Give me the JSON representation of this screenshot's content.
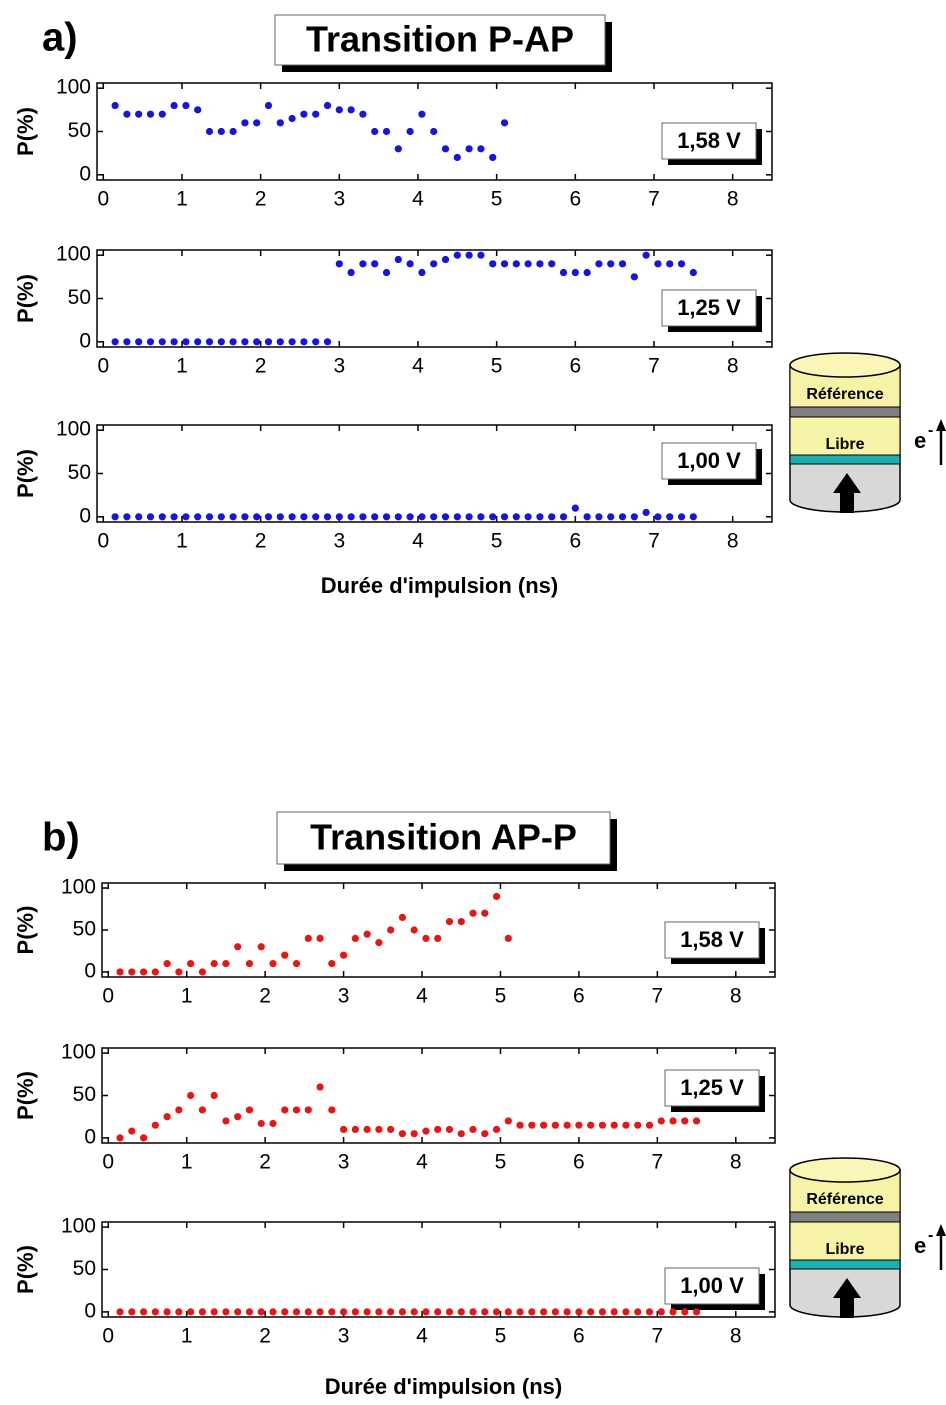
{
  "chart_data": [
    {
      "type": "scatter",
      "panel_label": "a)",
      "title": "Transition P-AP",
      "annotation": "1,58 V",
      "ylabel": "P(%)",
      "color": "#1515e0",
      "x": [
        0.15,
        0.3,
        0.45,
        0.6,
        0.75,
        0.9,
        1.05,
        1.2,
        1.35,
        1.5,
        1.65,
        1.8,
        1.95,
        2.1,
        2.25,
        2.4,
        2.55,
        2.7,
        2.85,
        3,
        3.15,
        3.3,
        3.45,
        3.6,
        3.75,
        3.9,
        4.05,
        4.2,
        4.35,
        4.5,
        4.65,
        4.8,
        4.95,
        5.1
      ],
      "values": [
        80,
        70,
        70,
        70,
        70,
        80,
        80,
        75,
        50,
        50,
        50,
        60,
        60,
        80,
        60,
        65,
        70,
        70,
        80,
        75,
        75,
        70,
        50,
        50,
        30,
        50,
        70,
        50,
        30,
        20,
        30,
        30,
        20,
        60
      ],
      "xlim": [
        -0.08,
        8.5
      ],
      "ylim": [
        -6,
        106
      ],
      "xticks": [
        0,
        1,
        2,
        3,
        4,
        5,
        6,
        7,
        8
      ],
      "yticks": [
        0,
        50,
        100
      ]
    },
    {
      "type": "scatter",
      "annotation": "1,25 V",
      "ylabel": "P(%)",
      "color": "#1515e0",
      "x": [
        0.15,
        0.3,
        0.45,
        0.6,
        0.75,
        0.9,
        1.05,
        1.2,
        1.35,
        1.5,
        1.65,
        1.8,
        1.95,
        2.1,
        2.25,
        2.4,
        2.55,
        2.7,
        2.85,
        3,
        3.15,
        3.3,
        3.45,
        3.6,
        3.75,
        3.9,
        4.05,
        4.2,
        4.35,
        4.5,
        4.65,
        4.8,
        4.95,
        5.1,
        5.25,
        5.4,
        5.55,
        5.7,
        5.85,
        6,
        6.15,
        6.3,
        6.45,
        6.6,
        6.75,
        6.9,
        7.05,
        7.2,
        7.35,
        7.5
      ],
      "values": [
        0,
        0,
        0,
        0,
        0,
        0,
        0,
        0,
        0,
        0,
        0,
        0,
        0,
        0,
        0,
        0,
        0,
        0,
        0,
        90,
        80,
        90,
        90,
        80,
        95,
        90,
        80,
        90,
        95,
        100,
        100,
        100,
        90,
        90,
        90,
        90,
        90,
        90,
        80,
        80,
        80,
        90,
        90,
        90,
        75,
        100,
        90,
        90,
        90,
        80
      ],
      "xlim": [
        -0.08,
        8.5
      ],
      "ylim": [
        -6,
        106
      ],
      "xticks": [
        0,
        1,
        2,
        3,
        4,
        5,
        6,
        7,
        8
      ],
      "yticks": [
        0,
        50,
        100
      ]
    },
    {
      "type": "scatter",
      "annotation": "1,00 V",
      "ylabel": "P(%)",
      "xlabel": "Durée d'impulsion (ns)",
      "color": "#1515e0",
      "x": [
        0.15,
        0.3,
        0.45,
        0.6,
        0.75,
        0.9,
        1.05,
        1.2,
        1.35,
        1.5,
        1.65,
        1.8,
        1.95,
        2.1,
        2.25,
        2.4,
        2.55,
        2.7,
        2.85,
        3,
        3.15,
        3.3,
        3.45,
        3.6,
        3.75,
        3.9,
        4.05,
        4.2,
        4.35,
        4.5,
        4.65,
        4.8,
        4.95,
        5.1,
        5.25,
        5.4,
        5.55,
        5.7,
        5.85,
        6,
        6.15,
        6.3,
        6.45,
        6.6,
        6.75,
        6.9,
        7.05,
        7.2,
        7.35,
        7.5
      ],
      "values": [
        0,
        0,
        0,
        0,
        0,
        0,
        0,
        0,
        0,
        0,
        0,
        0,
        0,
        0,
        0,
        0,
        0,
        0,
        0,
        0,
        0,
        0,
        0,
        0,
        0,
        0,
        0,
        0,
        0,
        0,
        0,
        0,
        0,
        0,
        0,
        0,
        0,
        0,
        0,
        10,
        0,
        0,
        0,
        0,
        0,
        5,
        0,
        0,
        0,
        0
      ],
      "xlim": [
        -0.08,
        8.5
      ],
      "ylim": [
        -6,
        106
      ],
      "xticks": [
        0,
        1,
        2,
        3,
        4,
        5,
        6,
        7,
        8
      ],
      "yticks": [
        0,
        50,
        100
      ]
    },
    {
      "type": "scatter",
      "panel_label": "b)",
      "title": "Transition AP-P",
      "annotation": "1,58 V",
      "ylabel": "P(%)",
      "color": "#e81515",
      "x": [
        0.15,
        0.3,
        0.45,
        0.6,
        0.75,
        0.9,
        1.05,
        1.2,
        1.35,
        1.5,
        1.65,
        1.8,
        1.95,
        2.1,
        2.25,
        2.4,
        2.55,
        2.7,
        2.85,
        3,
        3.15,
        3.3,
        3.45,
        3.6,
        3.75,
        3.9,
        4.05,
        4.2,
        4.35,
        4.5,
        4.65,
        4.8,
        4.95,
        5.1
      ],
      "values": [
        0,
        0,
        0,
        0,
        10,
        0,
        10,
        0,
        10,
        10,
        30,
        10,
        30,
        10,
        20,
        10,
        40,
        40,
        10,
        20,
        40,
        45,
        35,
        50,
        65,
        50,
        40,
        40,
        60,
        60,
        70,
        70,
        90,
        40
      ],
      "xlim": [
        -0.08,
        8.5
      ],
      "ylim": [
        -6,
        106
      ],
      "xticks": [
        0,
        1,
        2,
        3,
        4,
        5,
        6,
        7,
        8
      ],
      "yticks": [
        0,
        50,
        100
      ]
    },
    {
      "type": "scatter",
      "annotation": "1,25 V",
      "ylabel": "P(%)",
      "color": "#e81515",
      "x": [
        0.15,
        0.3,
        0.45,
        0.6,
        0.75,
        0.9,
        1.05,
        1.2,
        1.35,
        1.5,
        1.65,
        1.8,
        1.95,
        2.1,
        2.25,
        2.4,
        2.55,
        2.7,
        2.85,
        3,
        3.15,
        3.3,
        3.45,
        3.6,
        3.75,
        3.9,
        4.05,
        4.2,
        4.35,
        4.5,
        4.65,
        4.8,
        4.95,
        5.1,
        5.25,
        5.4,
        5.55,
        5.7,
        5.85,
        6,
        6.15,
        6.3,
        6.45,
        6.6,
        6.75,
        6.9,
        7.05,
        7.2,
        7.35,
        7.5
      ],
      "values": [
        0,
        8,
        0,
        15,
        25,
        33,
        50,
        33,
        50,
        20,
        25,
        33,
        17,
        17,
        33,
        33,
        33,
        60,
        33,
        10,
        10,
        10,
        10,
        10,
        5,
        5,
        8,
        10,
        10,
        5,
        10,
        5,
        10,
        20,
        15,
        15,
        15,
        15,
        15,
        15,
        15,
        15,
        15,
        15,
        15,
        15,
        20,
        20,
        20,
        20
      ],
      "xlim": [
        -0.08,
        8.5
      ],
      "ylim": [
        -6,
        106
      ],
      "xticks": [
        0,
        1,
        2,
        3,
        4,
        5,
        6,
        7,
        8
      ],
      "yticks": [
        0,
        50,
        100
      ]
    },
    {
      "type": "scatter",
      "annotation": "1,00 V",
      "ylabel": "P(%)",
      "xlabel": "Durée d'impulsion (ns)",
      "color": "#e81515",
      "x": [
        0.15,
        0.3,
        0.45,
        0.6,
        0.75,
        0.9,
        1.05,
        1.2,
        1.35,
        1.5,
        1.65,
        1.8,
        1.95,
        2.1,
        2.25,
        2.4,
        2.55,
        2.7,
        2.85,
        3,
        3.15,
        3.3,
        3.45,
        3.6,
        3.75,
        3.9,
        4.05,
        4.2,
        4.35,
        4.5,
        4.65,
        4.8,
        4.95,
        5.1,
        5.25,
        5.4,
        5.55,
        5.7,
        5.85,
        6,
        6.15,
        6.3,
        6.45,
        6.6,
        6.75,
        6.9,
        7.05,
        7.2,
        7.35,
        7.5
      ],
      "values": [
        0,
        0,
        0,
        0,
        0,
        0,
        0,
        0,
        0,
        0,
        0,
        0,
        0,
        0,
        0,
        0,
        0,
        0,
        0,
        0,
        0,
        0,
        0,
        0,
        0,
        0,
        0,
        0,
        0,
        0,
        0,
        0,
        0,
        0,
        0,
        0,
        0,
        0,
        0,
        0,
        0,
        0,
        0,
        0,
        0,
        0,
        0,
        0,
        0,
        0
      ],
      "xlim": [
        -0.08,
        8.5
      ],
      "ylim": [
        -6,
        106
      ],
      "xticks": [
        0,
        1,
        2,
        3,
        4,
        5,
        6,
        7,
        8
      ],
      "yticks": [
        0,
        50,
        100
      ]
    }
  ],
  "diagrams": [
    {
      "top_layer": "Référence",
      "free_layer": "Libre",
      "electron": "e",
      "charge": "-"
    },
    {
      "top_layer": "Référence",
      "free_layer": "Libre",
      "electron": "e",
      "charge": "-"
    }
  ]
}
